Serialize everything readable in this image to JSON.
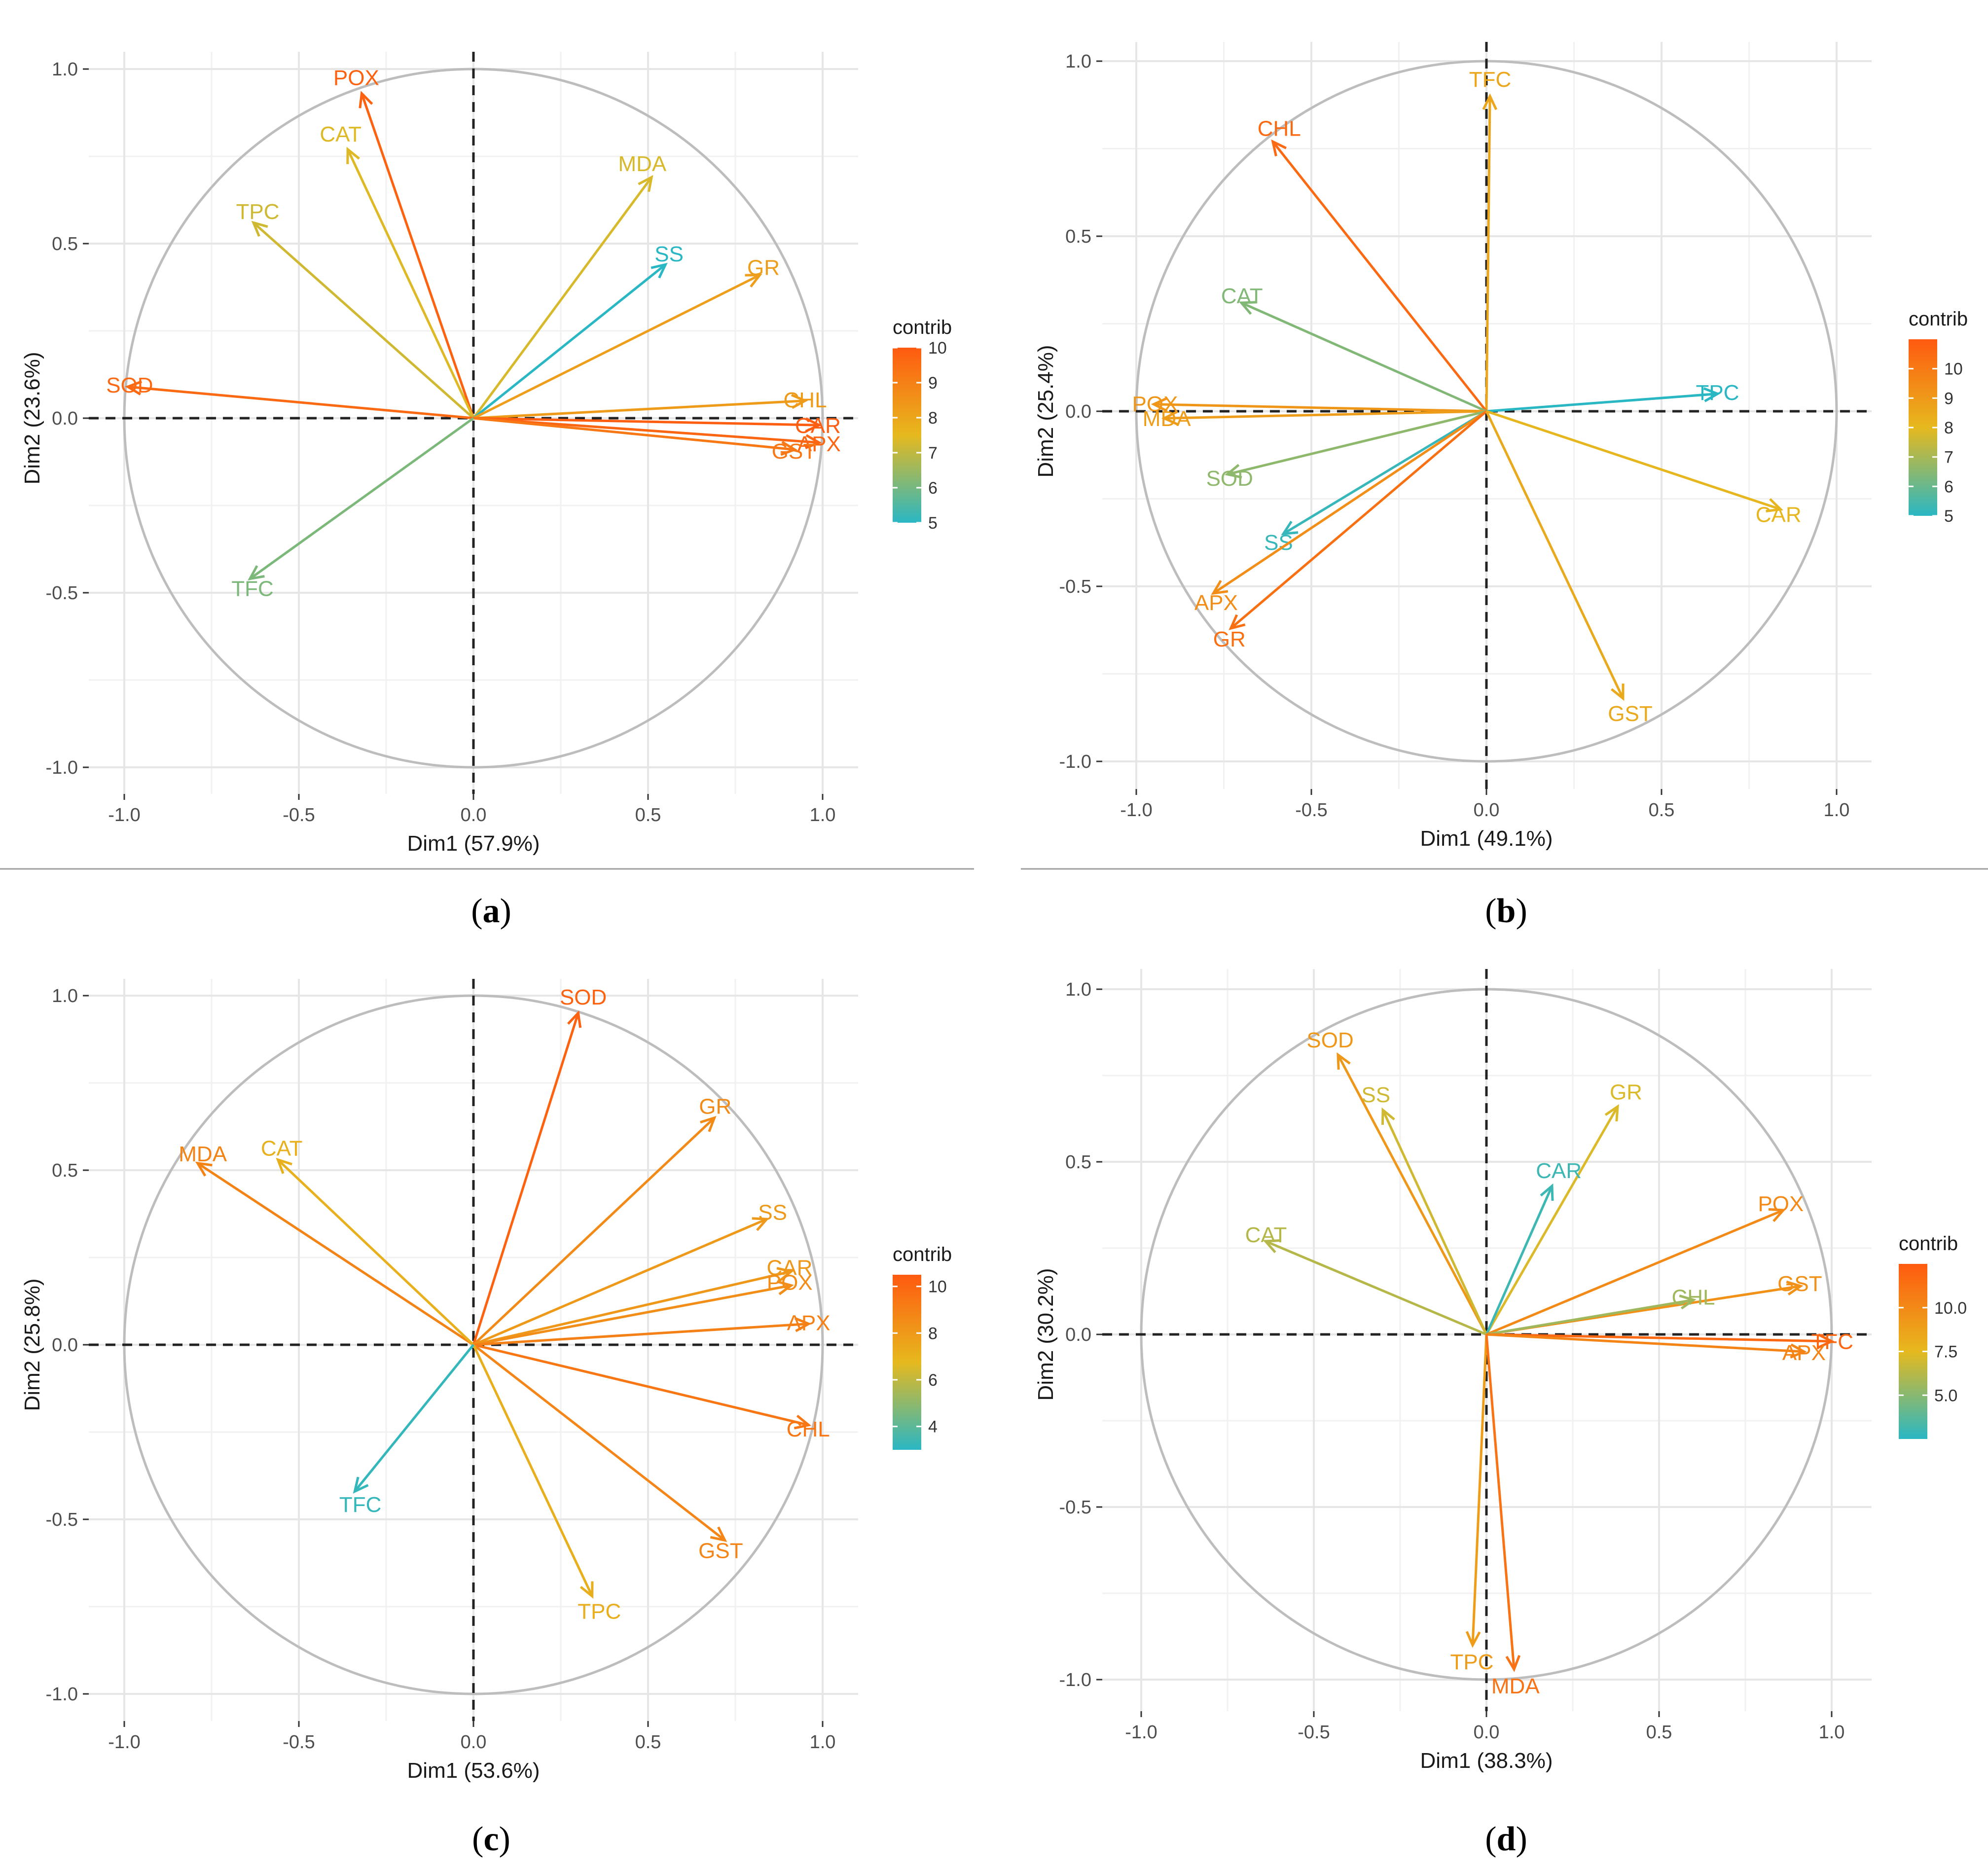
{
  "colors": {
    "low": "#2ab7c4",
    "mid": "#e6b91e",
    "high": "#ff5a10"
  },
  "panel_labels": [
    "a",
    "b",
    "c",
    "d"
  ],
  "chart_data": [
    {
      "type": "scatter",
      "subtype": "pca-variable-correlation-circle",
      "panel": "a",
      "xlabel": "Dim1 (57.9%)",
      "ylabel": "Dim2 (23.6%)",
      "xlim": [
        -1.0,
        1.0
      ],
      "ylim": [
        -1.0,
        1.0
      ],
      "xticks": [
        "-1.0",
        "-0.5",
        "0.0",
        "0.5",
        "1.0"
      ],
      "yticks": [
        "-1.0",
        "-0.5",
        "0.0",
        "0.5",
        "1.0"
      ],
      "legend": {
        "title": "contrib",
        "min": 5,
        "max": 10,
        "ticks": [
          "5",
          "6",
          "7",
          "8",
          "9",
          "10"
        ]
      },
      "variables": [
        {
          "name": "POX",
          "x": -0.32,
          "y": 0.93,
          "contrib": 9.8
        },
        {
          "name": "CAT",
          "x": -0.36,
          "y": 0.77,
          "contrib": 7.4
        },
        {
          "name": "TPC",
          "x": -0.63,
          "y": 0.56,
          "contrib": 7.2
        },
        {
          "name": "MDA",
          "x": 0.51,
          "y": 0.69,
          "contrib": 7.3
        },
        {
          "name": "SS",
          "x": 0.55,
          "y": 0.44,
          "contrib": 5.0
        },
        {
          "name": "GR",
          "x": 0.82,
          "y": 0.41,
          "contrib": 8.2
        },
        {
          "name": "SOD",
          "x": -0.99,
          "y": 0.09,
          "contrib": 9.6
        },
        {
          "name": "CHL",
          "x": 0.95,
          "y": 0.05,
          "contrib": 8.3
        },
        {
          "name": "CAR",
          "x": 0.99,
          "y": -0.02,
          "contrib": 9.9
        },
        {
          "name": "APX",
          "x": 0.99,
          "y": -0.07,
          "contrib": 9.7
        },
        {
          "name": "GST",
          "x": 0.92,
          "y": -0.09,
          "contrib": 9.2
        },
        {
          "name": "TFC",
          "x": -0.64,
          "y": -0.46,
          "contrib": 6.1
        }
      ]
    },
    {
      "type": "scatter",
      "subtype": "pca-variable-correlation-circle",
      "panel": "b",
      "xlabel": "Dim1 (49.1%)",
      "ylabel": "Dim2 (25.4%)",
      "xlim": [
        -1.0,
        1.0
      ],
      "ylim": [
        -1.0,
        1.0
      ],
      "xticks": [
        "-1.0",
        "-0.5",
        "0.0",
        "0.5",
        "1.0"
      ],
      "yticks": [
        "-1.0",
        "-0.5",
        "0.0",
        "0.5",
        "1.0"
      ],
      "legend": {
        "title": "contrib",
        "min": 5,
        "max": 11,
        "ticks": [
          "5",
          "6",
          "7",
          "8",
          "9",
          "10"
        ]
      },
      "variables": [
        {
          "name": "TFC",
          "x": 0.01,
          "y": 0.9,
          "contrib": 8.6
        },
        {
          "name": "CHL",
          "x": -0.61,
          "y": 0.77,
          "contrib": 10.5
        },
        {
          "name": "CAT",
          "x": -0.7,
          "y": 0.31,
          "contrib": 6.4
        },
        {
          "name": "TPC",
          "x": 0.66,
          "y": 0.05,
          "contrib": 5.0
        },
        {
          "name": "POX",
          "x": -0.95,
          "y": 0.02,
          "contrib": 9.1
        },
        {
          "name": "MDA",
          "x": -0.92,
          "y": -0.02,
          "contrib": 8.9
        },
        {
          "name": "SOD",
          "x": -0.74,
          "y": -0.18,
          "contrib": 6.6
        },
        {
          "name": "SS",
          "x": -0.58,
          "y": -0.35,
          "contrib": 5.2
        },
        {
          "name": "APX",
          "x": -0.78,
          "y": -0.52,
          "contrib": 9.4
        },
        {
          "name": "GR",
          "x": -0.73,
          "y": -0.62,
          "contrib": 10.3
        },
        {
          "name": "CAR",
          "x": 0.84,
          "y": -0.28,
          "contrib": 8.1
        },
        {
          "name": "GST",
          "x": 0.39,
          "y": -0.82,
          "contrib": 8.5
        }
      ]
    },
    {
      "type": "scatter",
      "subtype": "pca-variable-correlation-circle",
      "panel": "c",
      "xlabel": "Dim1 (53.6%)",
      "ylabel": "Dim2 (25.8%)",
      "xlim": [
        -1.0,
        1.0
      ],
      "ylim": [
        -1.0,
        1.0
      ],
      "xticks": [
        "-1.0",
        "-0.5",
        "0.0",
        "0.5",
        "1.0"
      ],
      "yticks": [
        "-1.0",
        "-0.5",
        "0.0",
        "0.5",
        "1.0"
      ],
      "legend": {
        "title": "contrib",
        "min": 3,
        "max": 10.5,
        "ticks": [
          "4",
          "6",
          "8",
          "10"
        ]
      },
      "variables": [
        {
          "name": "SOD",
          "x": 0.3,
          "y": 0.95,
          "contrib": 10.2
        },
        {
          "name": "GR",
          "x": 0.69,
          "y": 0.65,
          "contrib": 8.6
        },
        {
          "name": "MDA",
          "x": -0.79,
          "y": 0.52,
          "contrib": 8.9
        },
        {
          "name": "CAT",
          "x": -0.56,
          "y": 0.53,
          "contrib": 7.1
        },
        {
          "name": "SS",
          "x": 0.84,
          "y": 0.36,
          "contrib": 8.0
        },
        {
          "name": "CAR",
          "x": 0.91,
          "y": 0.21,
          "contrib": 8.1
        },
        {
          "name": "POX",
          "x": 0.91,
          "y": 0.17,
          "contrib": 8.5
        },
        {
          "name": "APX",
          "x": 0.96,
          "y": 0.06,
          "contrib": 9.0
        },
        {
          "name": "CHL",
          "x": 0.96,
          "y": -0.23,
          "contrib": 9.4
        },
        {
          "name": "GST",
          "x": 0.72,
          "y": -0.56,
          "contrib": 8.8
        },
        {
          "name": "TPC",
          "x": 0.34,
          "y": -0.72,
          "contrib": 7.2
        },
        {
          "name": "TFC",
          "x": -0.34,
          "y": -0.42,
          "contrib": 3.2
        }
      ]
    },
    {
      "type": "scatter",
      "subtype": "pca-variable-correlation-circle",
      "panel": "d",
      "xlabel": "Dim1 (38.3%)",
      "ylabel": "Dim2 (30.2%)",
      "xlim": [
        -1.0,
        1.0
      ],
      "ylim": [
        -1.0,
        1.0
      ],
      "xticks": [
        "-1.0",
        "-0.5",
        "0.0",
        "0.5",
        "1.0"
      ],
      "yticks": [
        "-1.0",
        "-0.5",
        "0.0",
        "0.5",
        "1.0"
      ],
      "legend": {
        "title": "contrib",
        "min": 2.5,
        "max": 12.5,
        "ticks": [
          "5.0",
          "7.5",
          "10.0"
        ]
      },
      "variables": [
        {
          "name": "SOD",
          "x": -0.43,
          "y": 0.81,
          "contrib": 9.3
        },
        {
          "name": "SS",
          "x": -0.3,
          "y": 0.65,
          "contrib": 6.9
        },
        {
          "name": "GR",
          "x": 0.38,
          "y": 0.66,
          "contrib": 7.2
        },
        {
          "name": "CAR",
          "x": 0.19,
          "y": 0.43,
          "contrib": 3.0
        },
        {
          "name": "CAT",
          "x": -0.64,
          "y": 0.27,
          "contrib": 6.2
        },
        {
          "name": "POX",
          "x": 0.86,
          "y": 0.36,
          "contrib": 10.0
        },
        {
          "name": "GST",
          "x": 0.91,
          "y": 0.14,
          "contrib": 9.6
        },
        {
          "name": "CHL",
          "x": 0.6,
          "y": 0.1,
          "contrib": 5.6
        },
        {
          "name": "TFC",
          "x": 1.0,
          "y": -0.02,
          "contrib": 11.8
        },
        {
          "name": "APX",
          "x": 0.92,
          "y": -0.05,
          "contrib": 10.3
        },
        {
          "name": "TPC",
          "x": -0.04,
          "y": -0.9,
          "contrib": 9.0
        },
        {
          "name": "MDA",
          "x": 0.08,
          "y": -0.97,
          "contrib": 11.2
        }
      ]
    }
  ]
}
